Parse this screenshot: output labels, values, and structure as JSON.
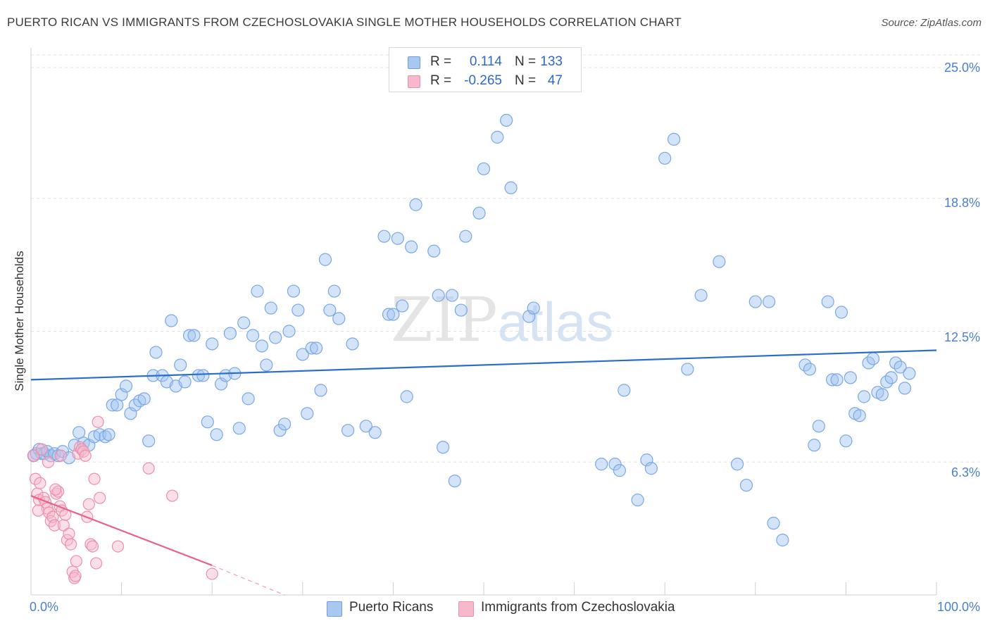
{
  "title": "PUERTO RICAN VS IMMIGRANTS FROM CZECHOSLOVAKIA SINGLE MOTHER HOUSEHOLDS CORRELATION CHART",
  "source": "Source: ZipAtlas.com",
  "watermark": {
    "zip": "ZIP",
    "atlas": "atlas"
  },
  "legend": {
    "rows": [
      {
        "r_label": "R =",
        "r_value": "0.114",
        "n_label": "N =",
        "n_value": "133",
        "color": "#a9c8f0",
        "border": "#6f9fe0"
      },
      {
        "r_label": "R =",
        "r_value": "-0.265",
        "n_label": "N =",
        "n_value": "47",
        "color": "#f7b8cb",
        "border": "#ec8fab"
      }
    ]
  },
  "bottom_legend": [
    {
      "label": "Puerto Ricans",
      "color": "#a9c8f0",
      "border": "#6f9fe0"
    },
    {
      "label": "Immigrants from Czechoslovakia",
      "color": "#f7b8cb",
      "border": "#ec8fab"
    }
  ],
  "chart_data": {
    "type": "scatter",
    "title": "PUERTO RICAN VS IMMIGRANTS FROM CZECHOSLOVAKIA SINGLE MOTHER HOUSEHOLDS CORRELATION CHART",
    "xlabel": "",
    "ylabel": "Single Mother Households",
    "xlim": [
      0,
      100
    ],
    "ylim": [
      0,
      25.0
    ],
    "x_tick_labels": [
      {
        "value": 0,
        "label": "0.0%"
      },
      {
        "value": 100,
        "label": "100.0%"
      }
    ],
    "y_tick_labels": [
      {
        "value": 6.3,
        "label": "6.3%"
      },
      {
        "value": 12.5,
        "label": "12.5%"
      },
      {
        "value": 18.8,
        "label": "18.8%"
      },
      {
        "value": 25.0,
        "label": "25.0%"
      }
    ],
    "series": [
      {
        "name": "Puerto Ricans",
        "color": "#7aa7e6",
        "fill": "rgba(160,196,240,0.45)",
        "trend": {
          "x0": 0,
          "y0": 10.2,
          "x1": 100,
          "y1": 11.6,
          "color": "#2a6dcc"
        },
        "points": [
          [
            0.3,
            6.6
          ],
          [
            0.6,
            6.7
          ],
          [
            0.9,
            6.9
          ],
          [
            1.2,
            6.7
          ],
          [
            1.5,
            6.7
          ],
          [
            1.8,
            6.8
          ],
          [
            2.2,
            6.6
          ],
          [
            2.6,
            6.7
          ],
          [
            3.0,
            6.6
          ],
          [
            3.5,
            6.8
          ],
          [
            4.2,
            6.5
          ],
          [
            4.8,
            7.1
          ],
          [
            5.3,
            7.7
          ],
          [
            5.8,
            7.2
          ],
          [
            6.4,
            7.1
          ],
          [
            7.0,
            7.5
          ],
          [
            7.6,
            7.6
          ],
          [
            8.2,
            7.5
          ],
          [
            8.6,
            7.6
          ],
          [
            9.0,
            9.0
          ],
          [
            9.5,
            9.0
          ],
          [
            10.0,
            9.5
          ],
          [
            10.5,
            9.9
          ],
          [
            11.0,
            8.6
          ],
          [
            11.5,
            9.0
          ],
          [
            12.0,
            9.2
          ],
          [
            12.5,
            9.3
          ],
          [
            13.0,
            7.3
          ],
          [
            13.5,
            10.4
          ],
          [
            13.8,
            11.5
          ],
          [
            14.5,
            10.4
          ],
          [
            15.0,
            10.1
          ],
          [
            15.5,
            13.0
          ],
          [
            16.0,
            9.9
          ],
          [
            16.5,
            10.9
          ],
          [
            17.0,
            10.1
          ],
          [
            17.5,
            12.3
          ],
          [
            18.0,
            12.3
          ],
          [
            18.5,
            10.4
          ],
          [
            19.0,
            10.4
          ],
          [
            19.5,
            8.2
          ],
          [
            20.0,
            11.9
          ],
          [
            20.5,
            7.6
          ],
          [
            21.0,
            10.0
          ],
          [
            21.5,
            10.4
          ],
          [
            22.0,
            12.4
          ],
          [
            22.5,
            10.5
          ],
          [
            23.0,
            7.9
          ],
          [
            23.5,
            12.9
          ],
          [
            24.0,
            9.3
          ],
          [
            24.5,
            12.3
          ],
          [
            25.0,
            14.4
          ],
          [
            25.5,
            11.8
          ],
          [
            26.0,
            10.9
          ],
          [
            26.5,
            13.6
          ],
          [
            27.0,
            12.2
          ],
          [
            27.5,
            7.8
          ],
          [
            28.0,
            8.1
          ],
          [
            28.5,
            12.5
          ],
          [
            29.0,
            14.4
          ],
          [
            29.5,
            13.5
          ],
          [
            30.0,
            11.4
          ],
          [
            30.5,
            8.6
          ],
          [
            31.0,
            11.7
          ],
          [
            31.5,
            11.7
          ],
          [
            32.0,
            9.7
          ],
          [
            32.5,
            15.9
          ],
          [
            33.0,
            13.5
          ],
          [
            33.5,
            14.4
          ],
          [
            34.0,
            13.1
          ],
          [
            35.0,
            7.8
          ],
          [
            35.5,
            11.9
          ],
          [
            37.0,
            8.0
          ],
          [
            38.0,
            7.7
          ],
          [
            39.0,
            17.0
          ],
          [
            39.5,
            13.3
          ],
          [
            40.0,
            13.3
          ],
          [
            40.5,
            16.9
          ],
          [
            41.0,
            13.7
          ],
          [
            41.5,
            9.4
          ],
          [
            42.0,
            16.5
          ],
          [
            42.5,
            18.5
          ],
          [
            44.5,
            16.3
          ],
          [
            45.0,
            14.2
          ],
          [
            45.5,
            7.0
          ],
          [
            46.5,
            14.2
          ],
          [
            46.8,
            5.4
          ],
          [
            47.5,
            13.5
          ],
          [
            48.0,
            17.0
          ],
          [
            49.5,
            18.1
          ],
          [
            50.0,
            20.2
          ],
          [
            51.5,
            21.7
          ],
          [
            52.5,
            22.5
          ],
          [
            53.0,
            19.3
          ],
          [
            55.0,
            13.2
          ],
          [
            55.5,
            13.6
          ],
          [
            63.0,
            6.2
          ],
          [
            64.5,
            6.2
          ],
          [
            65.0,
            5.9
          ],
          [
            65.5,
            9.7
          ],
          [
            67.0,
            4.5
          ],
          [
            68.0,
            6.4
          ],
          [
            68.5,
            6.0
          ],
          [
            70.0,
            20.7
          ],
          [
            71.0,
            21.6
          ],
          [
            72.5,
            10.7
          ],
          [
            74.0,
            14.2
          ],
          [
            76.0,
            15.8
          ],
          [
            78.0,
            6.2
          ],
          [
            79.0,
            5.2
          ],
          [
            80.0,
            13.9
          ],
          [
            81.5,
            13.9
          ],
          [
            82.0,
            3.4
          ],
          [
            83.0,
            2.6
          ],
          [
            85.5,
            10.9
          ],
          [
            86.0,
            10.7
          ],
          [
            86.5,
            7.1
          ],
          [
            87.0,
            8.0
          ],
          [
            88.0,
            13.9
          ],
          [
            88.5,
            10.2
          ],
          [
            89.0,
            10.2
          ],
          [
            89.5,
            13.4
          ],
          [
            90.0,
            7.3
          ],
          [
            90.5,
            10.3
          ],
          [
            91.0,
            8.6
          ],
          [
            91.5,
            8.5
          ],
          [
            92.0,
            9.4
          ],
          [
            92.5,
            11.0
          ],
          [
            93.0,
            11.2
          ],
          [
            93.5,
            9.6
          ],
          [
            94.0,
            9.5
          ],
          [
            94.5,
            10.1
          ],
          [
            95.0,
            10.3
          ],
          [
            95.5,
            11.0
          ],
          [
            96.0,
            10.8
          ],
          [
            96.5,
            9.8
          ],
          [
            97.0,
            10.5
          ]
        ]
      },
      {
        "name": "Immigrants from Czechoslovakia",
        "color": "#ec8fab",
        "fill": "rgba(247,184,203,0.45)",
        "trend": {
          "x0": 0,
          "y0": 4.7,
          "x1": 20,
          "y1": 1.4,
          "color": "#e8628a",
          "dashed_to_x": 28,
          "dashed_to_y": 0.0
        },
        "points": [
          [
            0.3,
            6.6
          ],
          [
            0.5,
            5.5
          ],
          [
            0.7,
            4.8
          ],
          [
            0.9,
            4.5
          ],
          [
            1.0,
            5.3
          ],
          [
            1.2,
            6.9
          ],
          [
            1.4,
            4.6
          ],
          [
            1.6,
            4.4
          ],
          [
            1.8,
            4.1
          ],
          [
            2.0,
            3.9
          ],
          [
            2.2,
            3.5
          ],
          [
            2.4,
            3.7
          ],
          [
            2.6,
            3.3
          ],
          [
            2.8,
            4.8
          ],
          [
            3.0,
            4.9
          ],
          [
            3.2,
            4.2
          ],
          [
            3.4,
            4.0
          ],
          [
            3.6,
            3.3
          ],
          [
            3.8,
            3.8
          ],
          [
            4.0,
            2.6
          ],
          [
            4.2,
            2.9
          ],
          [
            4.4,
            2.4
          ],
          [
            4.6,
            1.1
          ],
          [
            4.8,
            0.8
          ],
          [
            5.0,
            1.6
          ],
          [
            5.2,
            6.7
          ],
          [
            5.4,
            7.0
          ],
          [
            5.6,
            6.9
          ],
          [
            5.8,
            6.8
          ],
          [
            6.0,
            6.6
          ],
          [
            6.2,
            3.7
          ],
          [
            6.4,
            4.3
          ],
          [
            6.6,
            2.4
          ],
          [
            6.8,
            2.3
          ],
          [
            7.0,
            5.5
          ],
          [
            7.2,
            1.5
          ],
          [
            7.4,
            8.2
          ],
          [
            7.6,
            4.6
          ],
          [
            3.3,
            6.6
          ],
          [
            1.9,
            6.3
          ],
          [
            2.7,
            5.0
          ],
          [
            0.8,
            4.0
          ],
          [
            4.9,
            0.9
          ],
          [
            9.6,
            2.3
          ],
          [
            13.0,
            6.0
          ],
          [
            15.6,
            4.7
          ],
          [
            20.0,
            1.0
          ]
        ]
      }
    ]
  }
}
